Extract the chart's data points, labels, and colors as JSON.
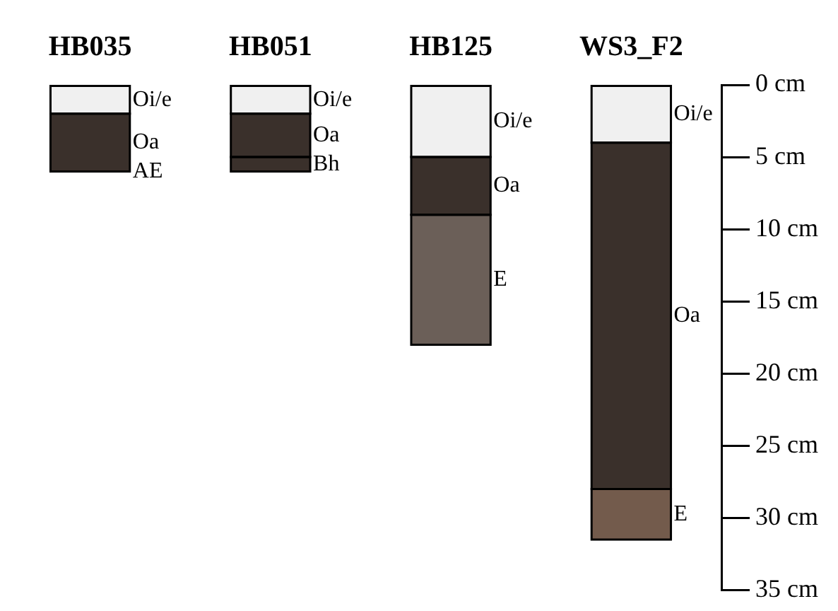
{
  "chart_data": {
    "type": "bar",
    "stacked": true,
    "categories": [
      "HB035",
      "HB051",
      "HB125",
      "WS3_F2"
    ],
    "series": [
      {
        "name": "Oi/e",
        "colors": [
          "#f0f0f0",
          "#f0f0f0",
          "#f0f0f0",
          "#f0f0f0"
        ],
        "values": [
          2,
          2,
          5,
          4
        ]
      },
      {
        "name": "Oa",
        "colors": [
          "#3a302b",
          "#3a302b",
          "#3a302b",
          "#3a302b"
        ],
        "values": [
          4,
          3,
          4,
          24
        ]
      },
      {
        "name": "AE",
        "colors": [
          "#3a302b",
          "#3a302b",
          "#3a302b",
          "#3a302b"
        ],
        "values": [
          0,
          null,
          null,
          null
        ]
      },
      {
        "name": "Bh",
        "colors": [
          "#3a302b",
          "#3a302b",
          "#3a302b",
          "#3a302b"
        ],
        "values": [
          null,
          1,
          null,
          null
        ]
      },
      {
        "name": "E",
        "colors": [
          "#6b5f58",
          "#6b5f58",
          "#6b5f58",
          "#735b4c"
        ],
        "values": [
          null,
          null,
          9,
          3.5
        ]
      }
    ],
    "ylim": [
      35,
      0
    ],
    "yticks": [
      {
        "value": 0,
        "label": "0 cm"
      },
      {
        "value": 5,
        "label": "5 cm"
      },
      {
        "value": 10,
        "label": "10 cm"
      },
      {
        "value": 15,
        "label": "15 cm"
      },
      {
        "value": 20,
        "label": "20 cm"
      },
      {
        "value": 25,
        "label": "25 cm"
      },
      {
        "value": 30,
        "label": "30 cm"
      },
      {
        "value": 35,
        "label": "35 cm"
      }
    ],
    "grid": false
  }
}
